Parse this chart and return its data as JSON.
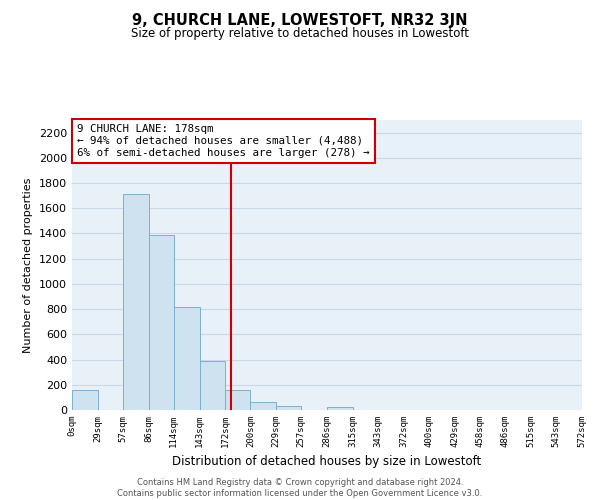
{
  "title": "9, CHURCH LANE, LOWESTOFT, NR32 3JN",
  "subtitle": "Size of property relative to detached houses in Lowestoft",
  "xlabel": "Distribution of detached houses by size in Lowestoft",
  "ylabel": "Number of detached properties",
  "bar_edges": [
    0,
    29,
    57,
    86,
    114,
    143,
    172,
    200,
    229,
    257,
    286,
    315,
    343,
    372,
    400,
    429,
    458,
    486,
    515,
    543,
    572
  ],
  "bar_heights": [
    155,
    0,
    1710,
    1390,
    820,
    390,
    160,
    65,
    30,
    0,
    25,
    0,
    0,
    0,
    0,
    0,
    0,
    0,
    0,
    0
  ],
  "bar_color": "#cfe2f0",
  "bar_edge_color": "#7ab0cc",
  "vline_x": 178,
  "vline_color": "#cc0000",
  "annotation_title": "9 CHURCH LANE: 178sqm",
  "annotation_line1": "← 94% of detached houses are smaller (4,488)",
  "annotation_line2": "6% of semi-detached houses are larger (278) →",
  "annotation_box_color": "#cc0000",
  "ylim": [
    0,
    2300
  ],
  "yticks": [
    0,
    200,
    400,
    600,
    800,
    1000,
    1200,
    1400,
    1600,
    1800,
    2000,
    2200
  ],
  "xtick_labels": [
    "0sqm",
    "29sqm",
    "57sqm",
    "86sqm",
    "114sqm",
    "143sqm",
    "172sqm",
    "200sqm",
    "229sqm",
    "257sqm",
    "286sqm",
    "315sqm",
    "343sqm",
    "372sqm",
    "400sqm",
    "429sqm",
    "458sqm",
    "486sqm",
    "515sqm",
    "543sqm",
    "572sqm"
  ],
  "footer_line1": "Contains HM Land Registry data © Crown copyright and database right 2024.",
  "footer_line2": "Contains public sector information licensed under the Open Government Licence v3.0.",
  "grid_color": "#c8d8e8",
  "bg_color": "#e8f0f8"
}
